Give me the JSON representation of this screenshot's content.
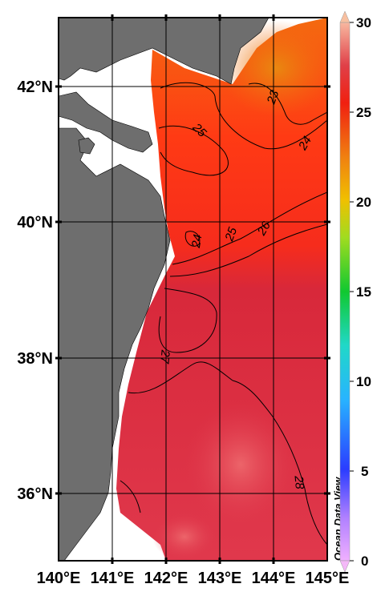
{
  "map": {
    "watermark": "Ocean Data View",
    "lat_labels": [
      "42°N",
      "40°N",
      "38°N",
      "36°N"
    ],
    "lon_labels": [
      "140°E",
      "141°E",
      "142°E",
      "143°E",
      "144°E",
      "145°E"
    ],
    "colorbar": {
      "ticks": [
        "30",
        "25",
        "20",
        "15",
        "10",
        "5",
        "0"
      ],
      "min": 0,
      "max": 30
    },
    "contour_labels": [
      "23",
      "24",
      "25",
      "24",
      "25",
      "26",
      "27",
      "28"
    ],
    "colors": {
      "land": "#6e6e6e",
      "ocean_warm": "#e0384a",
      "ocean_mid": "#ff2a18",
      "ocean_cool": "#f47f12",
      "grid": "#000000"
    }
  }
}
